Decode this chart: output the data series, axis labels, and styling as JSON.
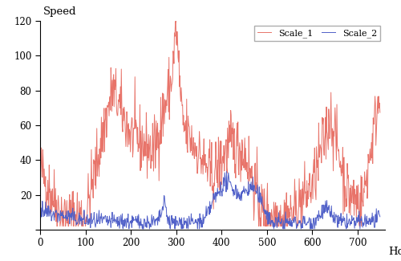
{
  "n": 750,
  "seed": 42,
  "ylabel": "Speed",
  "xlabel": "Hour",
  "xlim": [
    0,
    760
  ],
  "ylim": [
    0,
    120
  ],
  "xticks": [
    0,
    100,
    200,
    300,
    400,
    500,
    600,
    700
  ],
  "yticks": [
    0,
    20,
    40,
    60,
    80,
    100,
    120
  ],
  "scale1_color": "#E8746A",
  "scale2_color": "#5060C8",
  "scale1_label": "Scale_1",
  "scale2_label": "Scale_2",
  "linewidth": 0.7,
  "bg_color": "#FFFFFF",
  "tick_fontsize": 8.5,
  "label_fontsize": 9.5
}
